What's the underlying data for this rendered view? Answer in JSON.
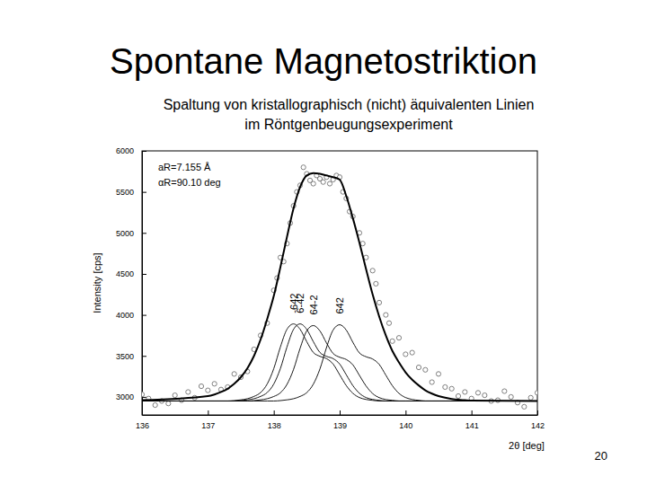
{
  "chart_data": {
    "type": "line",
    "title": "Spontane Magnetostriktion",
    "subtitle": [
      "Spaltung von kristallographisch (nicht) äquivalenten Linien",
      "im Röntgenbeugungsexperiment"
    ],
    "x_label": "2θ [deg]",
    "y_label": "Intensity [cps]",
    "xlim": [
      136,
      142
    ],
    "xticks": [
      136,
      137,
      138,
      139,
      140,
      141,
      142
    ],
    "ylim": [
      2780,
      6000
    ],
    "yticks": [
      3000,
      3500,
      4000,
      4500,
      5000,
      5500,
      6000
    ],
    "annotations": [
      "aR=7.155 Å",
      "αR=90.10 deg"
    ],
    "series": [
      {
        "type": "scatter",
        "marker": "circle",
        "color": "#7f7f7f",
        "x": [
          136,
          136.1,
          136.2,
          136.3,
          136.4,
          136.5,
          136.6,
          136.7,
          136.8,
          136.9,
          137,
          137.1,
          137.2,
          137.3,
          137.4,
          137.5,
          137.6,
          137.7,
          137.8,
          137.9,
          138,
          138.05,
          138.1,
          138.15,
          138.2,
          138.25,
          138.3,
          138.35,
          138.4,
          138.45,
          138.5,
          138.55,
          138.6,
          138.65,
          138.7,
          138.75,
          138.8,
          138.85,
          138.9,
          138.95,
          139,
          139.05,
          139.1,
          139.15,
          139.2,
          139.3,
          139.35,
          139.4,
          139.5,
          139.55,
          139.6,
          139.7,
          139.75,
          139.8,
          139.9,
          140,
          140.1,
          140.2,
          140.3,
          140.4,
          140.5,
          140.6,
          140.7,
          140.8,
          140.9,
          141,
          141.1,
          141.2,
          141.3,
          141.4,
          141.5,
          141.6,
          141.7,
          141.8,
          141.9,
          142
        ],
        "values": [
          3030,
          2980,
          2900,
          2950,
          2920,
          3020,
          2960,
          3060,
          2990,
          3130,
          3080,
          3160,
          3090,
          3120,
          3280,
          3240,
          3310,
          3580,
          3750,
          3900,
          4300,
          4450,
          4700,
          4650,
          4870,
          5120,
          5330,
          5500,
          5580,
          5800,
          5720,
          5640,
          5600,
          5700,
          5660,
          5620,
          5680,
          5600,
          5650,
          5700,
          5680,
          5500,
          5420,
          5260,
          5200,
          5000,
          4870,
          4700,
          4540,
          4380,
          4150,
          4000,
          3900,
          3680,
          3720,
          3520,
          3540,
          3360,
          3330,
          3180,
          3280,
          3120,
          3100,
          3010,
          3060,
          2980,
          3050,
          3020,
          2950,
          2960,
          3070,
          3000,
          2930,
          2880,
          2990,
          3050
        ]
      },
      {
        "type": "line",
        "line_style": "solid",
        "color": "#000000",
        "x": [
          136,
          137,
          137.1,
          137.2,
          137.3,
          137.4,
          137.5,
          137.6,
          137.7,
          137.8,
          137.9,
          138,
          138.1,
          138.2,
          138.3,
          138.4,
          138.5,
          138.6,
          138.7,
          138.8,
          138.9,
          139,
          139.1,
          139.2,
          139.3,
          139.4,
          139.5,
          139.6,
          139.7,
          139.8,
          139.9,
          140,
          140.1,
          140.2,
          140.3,
          140.4,
          140.5,
          140.6,
          140.7,
          140.8,
          140.9,
          141,
          142
        ],
        "values": [
          2960,
          3010,
          3030,
          3060,
          3100,
          3160,
          3240,
          3350,
          3500,
          3700,
          3950,
          4230,
          4580,
          4950,
          5300,
          5560,
          5700,
          5730,
          5720,
          5700,
          5680,
          5650,
          5450,
          5180,
          4880,
          4560,
          4250,
          3980,
          3750,
          3560,
          3420,
          3300,
          3210,
          3140,
          3080,
          3040,
          3010,
          2990,
          2975,
          2965,
          2960,
          2955,
          2950
        ]
      },
      {
        "name": "-642",
        "type": "line",
        "line_style": "solid",
        "color": "#000000",
        "x": [
          136,
          137,
          137.1,
          137.2,
          137.3,
          137.4,
          137.5,
          137.6,
          137.7,
          137.8,
          137.9,
          138,
          138.1,
          138.2,
          138.3,
          138.4,
          138.5,
          138.6,
          138.7,
          138.8,
          138.9,
          139,
          139.1,
          139.2,
          139.3,
          139.4,
          139.5,
          139.6,
          139.7,
          139.8,
          139.9,
          140,
          140.1,
          140.2,
          140.3,
          140.4,
          140.5,
          140.6,
          140.7,
          140.8,
          140.9,
          141,
          142
        ],
        "values": [
          2950,
          2950,
          2950,
          2950,
          2950,
          2955,
          2964,
          2978,
          3006,
          3053,
          3157,
          3345,
          3608,
          3824,
          3890,
          3824,
          3674,
          3542,
          3495,
          3467,
          3401,
          3270,
          3138,
          3044,
          2992,
          2969,
          2958,
          2950,
          2950,
          2950,
          2950,
          2950,
          2950,
          2950,
          2950,
          2950,
          2950,
          2950,
          2950,
          2950,
          2950,
          2950,
          2950
        ]
      },
      {
        "name": "6-42",
        "type": "line",
        "line_style": "solid",
        "color": "#000000",
        "x": [
          136,
          137,
          137.1,
          137.2,
          137.3,
          137.4,
          137.5,
          137.6,
          137.7,
          137.8,
          137.9,
          138,
          138.1,
          138.2,
          138.3,
          138.4,
          138.5,
          138.6,
          138.7,
          138.8,
          138.9,
          139,
          139.1,
          139.2,
          139.3,
          139.4,
          139.5,
          139.6,
          139.7,
          139.8,
          139.9,
          140,
          140.1,
          140.2,
          140.3,
          140.4,
          140.5,
          140.6,
          140.7,
          140.8,
          140.9,
          141,
          142
        ],
        "values": [
          2950,
          2950,
          2950,
          2950,
          2950,
          2950,
          2955,
          2964,
          2978,
          3006,
          3053,
          3157,
          3345,
          3608,
          3824,
          3890,
          3824,
          3674,
          3542,
          3495,
          3467,
          3401,
          3270,
          3138,
          3044,
          2992,
          2969,
          2958,
          2950,
          2950,
          2950,
          2950,
          2950,
          2950,
          2950,
          2950,
          2950,
          2950,
          2950,
          2950,
          2950,
          2950,
          2950
        ]
      },
      {
        "name": "64-2",
        "type": "line",
        "line_style": "solid",
        "color": "#000000",
        "x": [
          136,
          137,
          137.1,
          137.2,
          137.3,
          137.4,
          137.5,
          137.6,
          137.7,
          137.8,
          137.9,
          138,
          138.1,
          138.2,
          138.3,
          138.4,
          138.5,
          138.6,
          138.7,
          138.8,
          138.9,
          139,
          139.1,
          139.2,
          139.3,
          139.4,
          139.5,
          139.6,
          139.7,
          139.8,
          139.9,
          140,
          140.1,
          140.2,
          140.3,
          140.4,
          140.5,
          140.6,
          140.7,
          140.8,
          140.9,
          141,
          142
        ],
        "values": [
          2950,
          2950,
          2950,
          2950,
          2950,
          2950,
          2950,
          2950,
          2955,
          2964,
          2978,
          3005,
          3050,
          3152,
          3335,
          3594,
          3805,
          3870,
          3805,
          3658,
          3530,
          3484,
          3456,
          3391,
          3262,
          3134,
          3041,
          2991,
          2968,
          2958,
          2950,
          2950,
          2950,
          2950,
          2950,
          2950,
          2950,
          2950,
          2950,
          2950,
          2950,
          2950,
          2950
        ]
      },
      {
        "name": "642",
        "type": "line",
        "line_style": "solid",
        "color": "#000000",
        "x": [
          136,
          137,
          137.1,
          137.2,
          137.3,
          137.4,
          137.5,
          137.6,
          137.7,
          137.8,
          137.9,
          138,
          138.1,
          138.2,
          138.3,
          138.4,
          138.5,
          138.6,
          138.7,
          138.8,
          138.9,
          139,
          139.1,
          139.2,
          139.3,
          139.4,
          139.5,
          139.6,
          139.7,
          139.8,
          139.9,
          140,
          140.1,
          140.2,
          140.3,
          140.4,
          140.5,
          140.6,
          140.7,
          140.8,
          140.9,
          141,
          142
        ],
        "values": [
          2950,
          2950,
          2950,
          2950,
          2950,
          2950,
          2950,
          2950,
          2950,
          2950,
          2950,
          2950,
          2955,
          2964,
          2978,
          3006,
          3052,
          3155,
          3340,
          3601,
          3815,
          3880,
          3815,
          3666,
          3536,
          3490,
          3462,
          3396,
          3266,
          3136,
          3043,
          2992,
          2969,
          2958,
          2950,
          2950,
          2950,
          2950,
          2950,
          2950,
          2950,
          2950,
          2950
        ]
      }
    ]
  },
  "page": {
    "number": 20
  }
}
